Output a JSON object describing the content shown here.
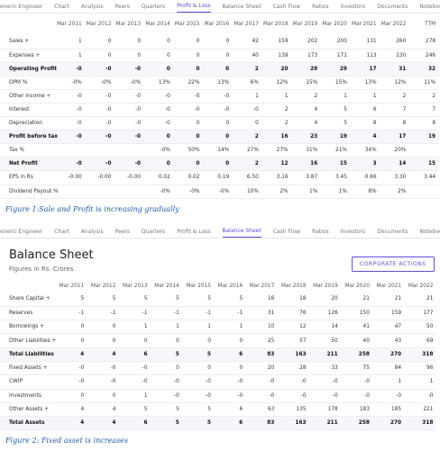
{
  "figure1": {
    "tabs": [
      "eneric Engineer",
      "Chart",
      "Analysis",
      "Peers",
      "Quarters",
      "Profit & Loss",
      "Balance Sheet",
      "Cash Flow",
      "Ratios",
      "Investors",
      "Documents",
      "Noteboo"
    ],
    "table": {
      "header": [
        "Mar 2011",
        "Mar 2012",
        "Mar 2013",
        "Mar 2014",
        "Mar 2015",
        "Mar 2016",
        "Mar 2017",
        "Mar 2018",
        "Mar 2019",
        "Mar 2020",
        "Mar 2021",
        "Mar 2022",
        "TTM"
      ],
      "rows": [
        {
          "label": "Sales +",
          "cells": [
            "1",
            "0",
            "0",
            "0",
            "0",
            "0",
            "42",
            "159",
            "202",
            "200",
            "131",
            "260",
            "278"
          ]
        },
        {
          "label": "Expenses +",
          "cells": [
            "1",
            "0",
            "0",
            "0",
            "0",
            "0",
            "40",
            "139",
            "173",
            "171",
            "113",
            "230",
            "246"
          ]
        },
        {
          "label": "Operating Profit",
          "cells": [
            "-0",
            "-0",
            "-0",
            "0",
            "0",
            "0",
            "2",
            "20",
            "29",
            "29",
            "17",
            "31",
            "32"
          ]
        },
        {
          "label": "OPM %",
          "cells": [
            "-0%",
            "-0%",
            "-0%",
            "13%",
            "22%",
            "13%",
            "6%",
            "12%",
            "15%",
            "15%",
            "13%",
            "12%",
            "11%"
          ]
        },
        {
          "label": "Other Income +",
          "cells": [
            "-0",
            "-0",
            "-0",
            "-0",
            "-0",
            "-0",
            "1",
            "1",
            "2",
            "1",
            "1",
            "2",
            "2"
          ]
        },
        {
          "label": "Interest",
          "cells": [
            "-0",
            "-0",
            "-0",
            "-0",
            "-0",
            "-0",
            "-0",
            "2",
            "4",
            "5",
            "6",
            "7",
            "7"
          ]
        },
        {
          "label": "Depreciation",
          "cells": [
            "-0",
            "-0",
            "-0",
            "-0",
            "0",
            "0",
            "0",
            "2",
            "4",
            "5",
            "8",
            "8",
            "8"
          ]
        },
        {
          "label": "Profit before tax",
          "cells": [
            "-0",
            "-0",
            "-0",
            "0",
            "0",
            "0",
            "2",
            "16",
            "23",
            "19",
            "4",
            "17",
            "19"
          ]
        },
        {
          "label": "Tax %",
          "cells": [
            null,
            null,
            null,
            "-0%",
            "50%",
            "14%",
            "27%",
            "27%",
            "31%",
            "21%",
            "34%",
            "20%",
            null
          ]
        },
        {
          "label": "Net Profit",
          "cells": [
            "-0",
            "-0",
            "-0",
            "0",
            "0",
            "0",
            "2",
            "12",
            "16",
            "15",
            "3",
            "14",
            "15"
          ]
        },
        {
          "label": "EPS in Rs",
          "cells": [
            "-0.00",
            "-0.00",
            "-0.00",
            "0.02",
            "0.02",
            "0.19",
            "6.50",
            "3.16",
            "3.87",
            "3.45",
            "0.66",
            "3.30",
            "3.44"
          ]
        },
        {
          "label": "Dividend Payout %",
          "cells": [
            null,
            null,
            null,
            "-0%",
            "-0%",
            "-0%",
            "10%",
            "2%",
            "1%",
            "1%",
            "8%",
            "2%",
            null
          ]
        }
      ]
    },
    "caption": "Figure 1:Sale and Profit is increasing gradually"
  },
  "figure2": {
    "tabs": [
      "eneric Engineer",
      "Chart",
      "Analysis",
      "Peers",
      "Quarters",
      "Profit & Loss",
      "Balance Sheet",
      "Cash Flow",
      "Ratios",
      "Investors",
      "Documents",
      "Noteboo"
    ],
    "title": "Balance Sheet",
    "subtitle": "Figures in Rs. Crores",
    "button": "CORPORATE ACTIONS",
    "table": {
      "header": [
        "Mar 2011",
        "Mar 2012",
        "Mar 2013",
        "Mar 2014",
        "Mar 2015",
        "Mar 2016",
        "Mar 2017",
        "Mar 2018",
        "Mar 2019",
        "Mar 2020",
        "Mar 2021",
        "Mar 2022"
      ],
      "rows": [
        {
          "label": "Share Capital +",
          "cells": [
            "5",
            "5",
            "5",
            "5",
            "5",
            "5",
            "16",
            "18",
            "20",
            "21",
            "21",
            "21"
          ]
        },
        {
          "label": "Reserves",
          "cells": [
            "-1",
            "-1",
            "-1",
            "-1",
            "-1",
            "-1",
            "31",
            "76",
            "126",
            "150",
            "159",
            "177"
          ]
        },
        {
          "label": "Borrowings +",
          "cells": [
            "0",
            "0",
            "1",
            "1",
            "1",
            "1",
            "10",
            "12",
            "14",
            "41",
            "47",
            "50"
          ]
        },
        {
          "label": "Other Liabilities +",
          "cells": [
            "0",
            "0",
            "0",
            "0",
            "0",
            "0",
            "25",
            "57",
            "50",
            "40",
            "43",
            "69"
          ]
        },
        {
          "label": "Total Liabilities",
          "cells": [
            "4",
            "4",
            "6",
            "5",
            "5",
            "6",
            "83",
            "163",
            "211",
            "258",
            "270",
            "318"
          ]
        },
        {
          "label": "Fixed Assets +",
          "cells": [
            "-0",
            "-0",
            "-0",
            "0",
            "0",
            "0",
            "20",
            "28",
            "33",
            "75",
            "84",
            "96"
          ]
        },
        {
          "label": "CWIP",
          "cells": [
            "-0",
            "-0",
            "-0",
            "-0",
            "-0",
            "-0",
            "-0",
            "-0",
            "-0",
            "-0",
            "1",
            "1"
          ]
        },
        {
          "label": "Investments",
          "cells": [
            "0",
            "0",
            "1",
            "-0",
            "-0",
            "-0",
            "-0",
            "-0",
            "-0",
            "-0",
            "-0",
            "-0"
          ]
        },
        {
          "label": "Other Assets +",
          "cells": [
            "4",
            "4",
            "5",
            "5",
            "5",
            "6",
            "63",
            "135",
            "178",
            "183",
            "185",
            "221"
          ]
        },
        {
          "label": "Total Assets",
          "cells": [
            "4",
            "4",
            "6",
            "5",
            "5",
            "6",
            "83",
            "163",
            "211",
            "258",
            "270",
            "318"
          ]
        }
      ]
    },
    "caption": "Figure 2: Fixed asset is increases"
  }
}
